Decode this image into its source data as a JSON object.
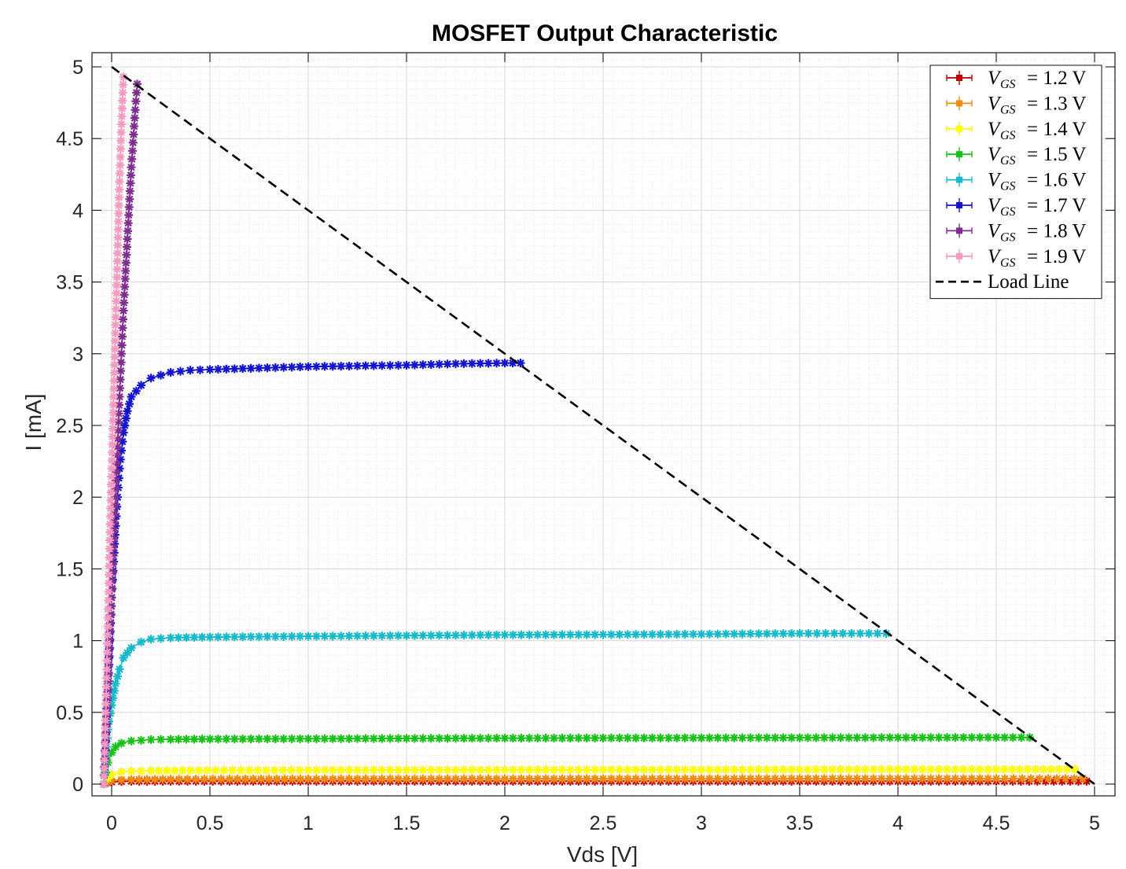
{
  "chart_data": {
    "type": "line",
    "title": "MOSFET Output Characteristic",
    "xlabel": "Vds [V]",
    "ylabel": "I [mA]",
    "xlim": [
      -0.05,
      5.05
    ],
    "ylim": [
      -0.08,
      5.1
    ],
    "xticks": [
      0,
      0.5,
      1,
      1.5,
      2,
      2.5,
      3,
      3.5,
      4,
      4.5,
      5
    ],
    "xtick_labels": [
      "0",
      "0.5",
      "1",
      "1.5",
      "2",
      "2.5",
      "3",
      "3.5",
      "4",
      "4.5",
      "5"
    ],
    "yticks": [
      0,
      0.5,
      1,
      1.5,
      2,
      2.5,
      3,
      3.5,
      4,
      4.5,
      5
    ],
    "ytick_labels": [
      "0",
      "0.5",
      "1",
      "1.5",
      "2",
      "2.5",
      "3",
      "3.5",
      "4",
      "4.5",
      "5"
    ],
    "grid": true,
    "minor_grid": true,
    "legend_position": "top-right",
    "marker": "*",
    "series": [
      {
        "name": "V_GS = 1.2 V",
        "legend_var": "V",
        "legend_sub": "GS",
        "legend_rest": "= 1.2 V",
        "color": "#c00000",
        "points": [
          [
            -0.04,
            0
          ],
          [
            -0.02,
            0.01
          ],
          [
            0,
            0.015
          ],
          [
            0.05,
            0.018
          ],
          [
            0.1,
            0.02
          ],
          [
            0.3,
            0.02
          ],
          [
            0.6,
            0.02
          ],
          [
            1,
            0.02
          ],
          [
            1.5,
            0.02
          ],
          [
            2,
            0.02
          ],
          [
            2.5,
            0.02
          ],
          [
            3,
            0.02
          ],
          [
            3.5,
            0.02
          ],
          [
            4,
            0.02
          ],
          [
            4.5,
            0.02
          ],
          [
            4.96,
            0.02
          ]
        ]
      },
      {
        "name": "V_GS = 1.3 V",
        "legend_var": "V",
        "legend_sub": "GS",
        "legend_rest": "= 1.3 V",
        "color": "#f08c14",
        "points": [
          [
            -0.04,
            0
          ],
          [
            -0.02,
            0.015
          ],
          [
            0,
            0.025
          ],
          [
            0.05,
            0.03
          ],
          [
            0.1,
            0.032
          ],
          [
            0.3,
            0.034
          ],
          [
            0.6,
            0.035
          ],
          [
            1,
            0.035
          ],
          [
            1.5,
            0.036
          ],
          [
            2,
            0.036
          ],
          [
            2.5,
            0.037
          ],
          [
            3,
            0.037
          ],
          [
            3.5,
            0.038
          ],
          [
            4,
            0.038
          ],
          [
            4.5,
            0.038
          ],
          [
            4.94,
            0.038
          ]
        ]
      },
      {
        "name": "V_GS = 1.4 V",
        "legend_var": "V",
        "legend_sub": "GS",
        "legend_rest": "= 1.4 V",
        "color": "#ffff00",
        "points": [
          [
            -0.04,
            0
          ],
          [
            -0.02,
            0.04
          ],
          [
            0,
            0.065
          ],
          [
            0.05,
            0.085
          ],
          [
            0.1,
            0.09
          ],
          [
            0.2,
            0.093
          ],
          [
            0.4,
            0.095
          ],
          [
            0.7,
            0.096
          ],
          [
            1,
            0.097
          ],
          [
            1.5,
            0.098
          ],
          [
            2,
            0.099
          ],
          [
            2.5,
            0.1
          ],
          [
            3,
            0.1
          ],
          [
            3.5,
            0.101
          ],
          [
            4,
            0.102
          ],
          [
            4.5,
            0.102
          ],
          [
            4.9,
            0.103
          ]
        ]
      },
      {
        "name": "V_GS = 1.5 V",
        "legend_var": "V",
        "legend_sub": "GS",
        "legend_rest": "= 1.5 V",
        "color": "#19c119",
        "points": [
          [
            -0.04,
            0
          ],
          [
            -0.03,
            0.08
          ],
          [
            -0.02,
            0.15
          ],
          [
            0,
            0.22
          ],
          [
            0.02,
            0.26
          ],
          [
            0.05,
            0.285
          ],
          [
            0.1,
            0.3
          ],
          [
            0.15,
            0.305
          ],
          [
            0.2,
            0.31
          ],
          [
            0.3,
            0.312
          ],
          [
            0.5,
            0.314
          ],
          [
            1,
            0.316
          ],
          [
            1.5,
            0.318
          ],
          [
            2,
            0.32
          ],
          [
            2.5,
            0.321
          ],
          [
            3,
            0.322
          ],
          [
            3.5,
            0.323
          ],
          [
            4,
            0.324
          ],
          [
            4.5,
            0.325
          ],
          [
            4.67,
            0.325
          ]
        ]
      },
      {
        "name": "V_GS = 1.6 V",
        "legend_var": "V",
        "legend_sub": "GS",
        "legend_rest": "= 1.6 V",
        "color": "#19b9c9",
        "points": [
          [
            -0.04,
            0
          ],
          [
            -0.03,
            0.2
          ],
          [
            -0.02,
            0.38
          ],
          [
            0,
            0.55
          ],
          [
            0.02,
            0.7
          ],
          [
            0.04,
            0.8
          ],
          [
            0.06,
            0.88
          ],
          [
            0.1,
            0.95
          ],
          [
            0.15,
            0.99
          ],
          [
            0.2,
            1.01
          ],
          [
            0.3,
            1.02
          ],
          [
            0.5,
            1.025
          ],
          [
            1,
            1.03
          ],
          [
            1.5,
            1.035
          ],
          [
            2,
            1.04
          ],
          [
            2.5,
            1.042
          ],
          [
            3,
            1.045
          ],
          [
            3.5,
            1.05
          ],
          [
            3.94,
            1.05
          ]
        ]
      },
      {
        "name": "V_GS = 1.7 V",
        "legend_var": "V",
        "legend_sub": "GS",
        "legend_rest": "= 1.7 V",
        "color": "#1414cc",
        "points": [
          [
            -0.04,
            0
          ],
          [
            -0.03,
            0.35
          ],
          [
            -0.02,
            0.7
          ],
          [
            -0.01,
            1
          ],
          [
            0,
            1.3
          ],
          [
            0.01,
            1.55
          ],
          [
            0.02,
            1.8
          ],
          [
            0.03,
            2.0
          ],
          [
            0.04,
            2.2
          ],
          [
            0.06,
            2.45
          ],
          [
            0.08,
            2.6
          ],
          [
            0.1,
            2.7
          ],
          [
            0.15,
            2.78
          ],
          [
            0.2,
            2.83
          ],
          [
            0.3,
            2.87
          ],
          [
            0.4,
            2.885
          ],
          [
            0.5,
            2.89
          ],
          [
            0.75,
            2.9
          ],
          [
            1,
            2.91
          ],
          [
            1.25,
            2.915
          ],
          [
            1.5,
            2.92
          ],
          [
            1.75,
            2.93
          ],
          [
            2.0,
            2.935
          ],
          [
            2.08,
            2.935
          ]
        ]
      },
      {
        "name": "V_GS = 1.8 V",
        "legend_var": "V",
        "legend_sub": "GS",
        "legend_rest": "= 1.8 V",
        "color": "#7e2f8e",
        "points": [
          [
            -0.04,
            0
          ],
          [
            -0.02,
            0.6
          ],
          [
            0,
            1.3
          ],
          [
            0.02,
            2.0
          ],
          [
            0.04,
            2.7
          ],
          [
            0.06,
            3.3
          ],
          [
            0.08,
            3.8
          ],
          [
            0.1,
            4.3
          ],
          [
            0.12,
            4.7
          ],
          [
            0.13,
            4.88
          ]
        ]
      },
      {
        "name": "V_GS = 1.9 V",
        "legend_var": "V",
        "legend_sub": "GS",
        "legend_rest": "= 1.9 V",
        "color": "#f59ac0",
        "points": [
          [
            -0.04,
            0
          ],
          [
            -0.03,
            0.5
          ],
          [
            -0.02,
            1.1
          ],
          [
            -0.01,
            1.7
          ],
          [
            0,
            2.2
          ],
          [
            0.01,
            2.7
          ],
          [
            0.02,
            3.2
          ],
          [
            0.03,
            3.7
          ],
          [
            0.04,
            4.2
          ],
          [
            0.05,
            4.6
          ],
          [
            0.06,
            4.93
          ]
        ]
      }
    ],
    "load_line": {
      "name": "Load Line",
      "color": "#000000",
      "dashed": true,
      "points": [
        [
          0,
          5.0
        ],
        [
          5.0,
          0
        ]
      ]
    }
  }
}
